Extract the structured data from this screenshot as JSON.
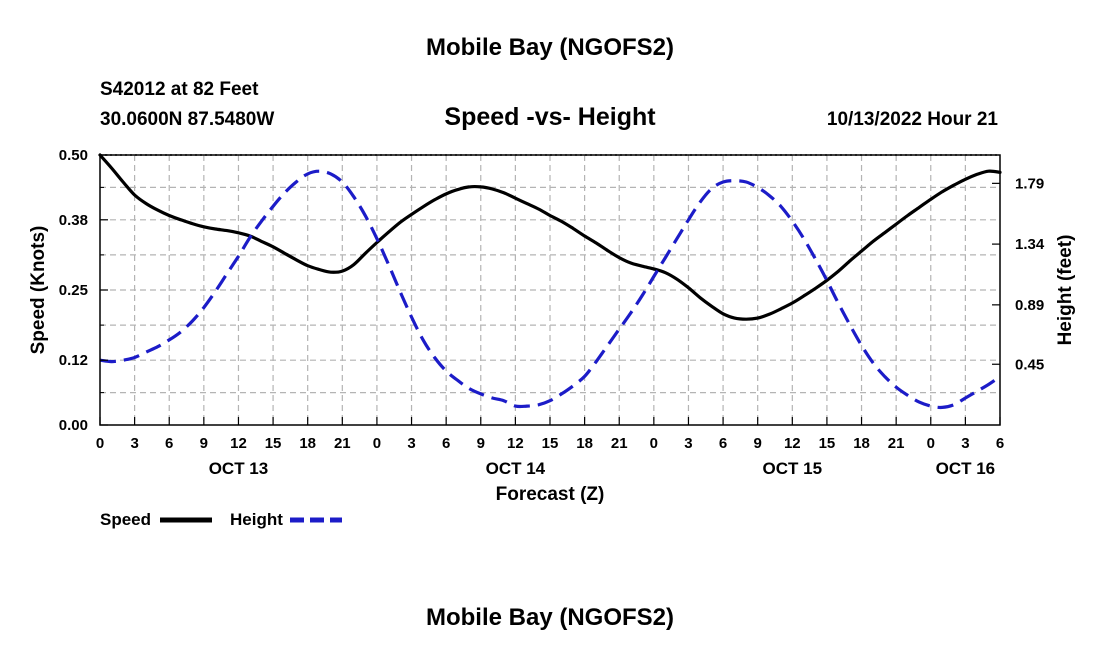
{
  "header": {
    "title": "Mobile Bay (NGOFS2)",
    "station": "S42012 at 82 Feet",
    "coordinates": "30.0600N  87.5480W",
    "subtitle": "Speed -vs- Height",
    "timestamp": "10/13/2022 Hour 21"
  },
  "footer": {
    "title": "Mobile Bay (NGOFS2)"
  },
  "chart_data": {
    "type": "line",
    "title": "Speed -vs- Height",
    "xlabel": "Forecast (Z)",
    "ylabel": "Speed (Knots)",
    "y2label": "Height (feet)",
    "xlim": [
      0,
      78
    ],
    "ylim": [
      0,
      0.5
    ],
    "y2lim": [
      0.0,
      2.0
    ],
    "yticks": [
      "0.00",
      "0.12",
      "0.25",
      "0.38",
      "0.50"
    ],
    "y2ticks": [
      "0.45",
      "0.89",
      "1.34",
      "1.79"
    ],
    "x_tick_labels": [
      "0",
      "3",
      "6",
      "9",
      "12",
      "15",
      "18",
      "21",
      "0",
      "3",
      "6",
      "9",
      "12",
      "15",
      "18",
      "21",
      "0",
      "3",
      "6",
      "9",
      "12",
      "15",
      "18",
      "21",
      "0",
      "3",
      "6"
    ],
    "date_labels": [
      {
        "label": "OCT 13",
        "at": 12
      },
      {
        "label": "OCT 14",
        "at": 36
      },
      {
        "label": "OCT 15",
        "at": 60
      },
      {
        "label": "OCT 16",
        "at": 75
      }
    ],
    "grid": true,
    "legend_position": "bottom-left",
    "series": [
      {
        "name": "Speed",
        "axis": "left",
        "color": "#000000",
        "style": "solid",
        "x": [
          0,
          1,
          2,
          3,
          4,
          5,
          6,
          7,
          8,
          9,
          10,
          11,
          12,
          13,
          14,
          15,
          16,
          17,
          18,
          19,
          20,
          21,
          22,
          23,
          24,
          25,
          26,
          27,
          28,
          29,
          30,
          31,
          32,
          33,
          34,
          35,
          36,
          37,
          38,
          39,
          40,
          41,
          42,
          43,
          44,
          45,
          46,
          47,
          48,
          49,
          50,
          51,
          52,
          53,
          54,
          55,
          56,
          57,
          58,
          59,
          60,
          61,
          62,
          63,
          64,
          65,
          66,
          67,
          68,
          69,
          70,
          71,
          72,
          73,
          74,
          75,
          76,
          77,
          78
        ],
        "values": [
          0.5,
          0.476,
          0.45,
          0.426,
          0.41,
          0.398,
          0.388,
          0.38,
          0.373,
          0.367,
          0.363,
          0.36,
          0.356,
          0.35,
          0.34,
          0.33,
          0.318,
          0.306,
          0.295,
          0.288,
          0.283,
          0.285,
          0.297,
          0.318,
          0.338,
          0.357,
          0.375,
          0.39,
          0.404,
          0.417,
          0.428,
          0.436,
          0.441,
          0.441,
          0.437,
          0.43,
          0.42,
          0.41,
          0.4,
          0.388,
          0.377,
          0.364,
          0.35,
          0.337,
          0.323,
          0.31,
          0.3,
          0.294,
          0.289,
          0.282,
          0.27,
          0.254,
          0.236,
          0.22,
          0.206,
          0.198,
          0.196,
          0.198,
          0.205,
          0.215,
          0.226,
          0.239,
          0.253,
          0.268,
          0.285,
          0.304,
          0.322,
          0.34,
          0.356,
          0.372,
          0.388,
          0.403,
          0.418,
          0.432,
          0.444,
          0.455,
          0.464,
          0.47,
          0.468
        ]
      },
      {
        "name": "Height",
        "axis": "right",
        "color": "#1c1cc8",
        "style": "dashed",
        "x": [
          0,
          1,
          2,
          3,
          4,
          5,
          6,
          7,
          8,
          9,
          10,
          11,
          12,
          13,
          14,
          15,
          16,
          17,
          18,
          19,
          20,
          21,
          22,
          23,
          24,
          25,
          26,
          27,
          28,
          29,
          30,
          31,
          32,
          33,
          34,
          35,
          36,
          37,
          38,
          39,
          40,
          41,
          42,
          43,
          44,
          45,
          46,
          47,
          48,
          49,
          50,
          51,
          52,
          53,
          54,
          55,
          56,
          57,
          58,
          59,
          60,
          61,
          62,
          63,
          64,
          65,
          66,
          67,
          68,
          69,
          70,
          71,
          72,
          73,
          74,
          75,
          76,
          77,
          78
        ],
        "values": [
          0.48,
          0.47,
          0.48,
          0.5,
          0.54,
          0.58,
          0.63,
          0.69,
          0.77,
          0.87,
          0.99,
          1.12,
          1.25,
          1.39,
          1.51,
          1.62,
          1.72,
          1.8,
          1.86,
          1.88,
          1.86,
          1.8,
          1.69,
          1.55,
          1.38,
          1.19,
          0.99,
          0.8,
          0.63,
          0.5,
          0.4,
          0.33,
          0.27,
          0.23,
          0.2,
          0.18,
          0.14,
          0.14,
          0.15,
          0.18,
          0.23,
          0.29,
          0.36,
          0.47,
          0.59,
          0.71,
          0.83,
          0.96,
          1.1,
          1.24,
          1.38,
          1.52,
          1.65,
          1.75,
          1.8,
          1.81,
          1.8,
          1.76,
          1.7,
          1.62,
          1.51,
          1.38,
          1.23,
          1.07,
          0.9,
          0.74,
          0.59,
          0.46,
          0.36,
          0.28,
          0.22,
          0.17,
          0.14,
          0.13,
          0.15,
          0.2,
          0.25,
          0.3,
          0.36
        ]
      }
    ]
  }
}
